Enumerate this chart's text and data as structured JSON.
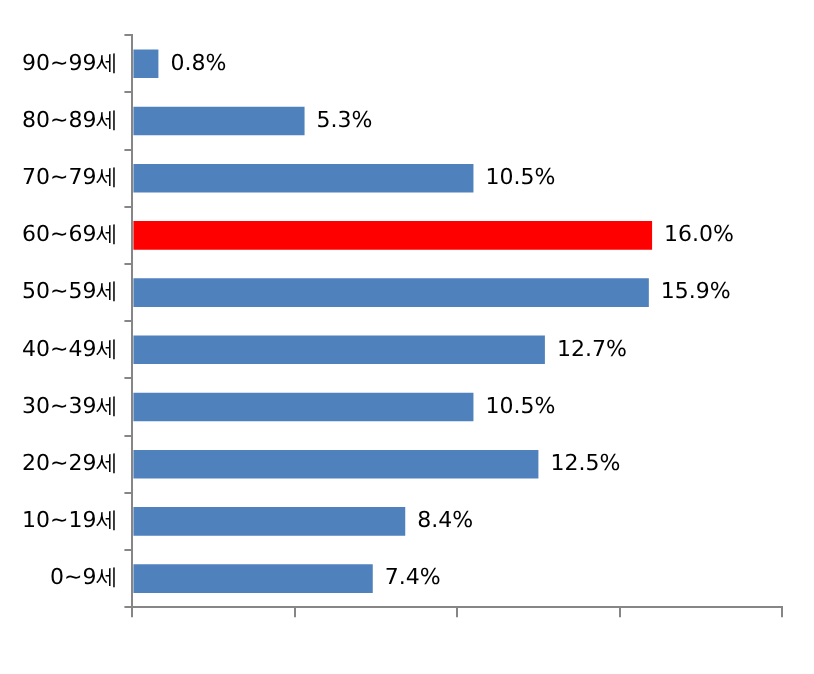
{
  "chart_data": {
    "type": "bar",
    "orientation": "horizontal",
    "categories": [
      "90~99세",
      "80~89세",
      "70~79세",
      "60~69세",
      "50~59세",
      "40~49세",
      "30~39세",
      "20~29세",
      "10~19세",
      "0~9세"
    ],
    "values": [
      0.8,
      5.3,
      10.5,
      16.0,
      15.9,
      12.7,
      10.5,
      12.5,
      8.4,
      7.4
    ],
    "value_labels": [
      "0.8%",
      "5.3%",
      "10.5%",
      "16.0%",
      "15.9%",
      "12.7%",
      "10.5%",
      "12.5%",
      "8.4%",
      "7.4%"
    ],
    "colors": [
      "#4f81bd",
      "#4f81bd",
      "#4f81bd",
      "#ff0000",
      "#4f81bd",
      "#4f81bd",
      "#4f81bd",
      "#4f81bd",
      "#4f81bd",
      "#4f81bd"
    ],
    "xlim": [
      0,
      20
    ],
    "xticks": [
      {
        "value": 0,
        "label": null
      },
      {
        "value": 5,
        "label": null
      },
      {
        "value": 10,
        "label": null
      },
      {
        "value": 15,
        "label": null
      },
      {
        "value": 20,
        "label": null
      }
    ],
    "grid": false,
    "legend": false
  }
}
